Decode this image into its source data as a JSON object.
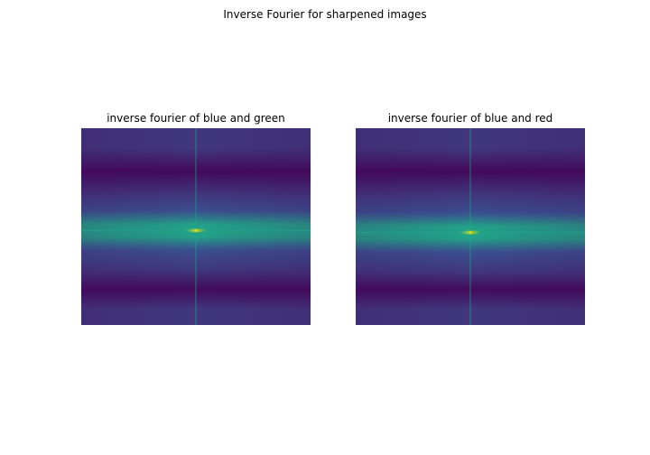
{
  "figure": {
    "title": "Inverse Fourier for sharpened images"
  },
  "chart_data": [
    {
      "type": "heatmap",
      "title": "inverse fourier of blue and green",
      "xlabel": "",
      "ylabel": "",
      "axes_visible": false,
      "colormap": "viridis",
      "colors": {
        "background": "#40377c",
        "dark_band": "#430a5c",
        "mid_band": "#3a4f8e",
        "bright_band": "#22a188",
        "peak": "#d8e219"
      },
      "features": {
        "bright_band_row_fraction": 0.52,
        "peak_col_fraction": 0.5,
        "peak_row_fraction": 0.52,
        "dark_bands_row_fractions": [
          0.22,
          0.87
        ]
      }
    },
    {
      "type": "heatmap",
      "title": "inverse fourier of blue and red",
      "xlabel": "",
      "ylabel": "",
      "axes_visible": false,
      "colormap": "viridis",
      "colors": {
        "background": "#40377c",
        "dark_band": "#430a5c",
        "mid_band": "#3a4f8e",
        "bright_band": "#22a188",
        "peak": "#d8e219"
      },
      "features": {
        "bright_band_row_fraction": 0.53,
        "peak_col_fraction": 0.5,
        "peak_row_fraction": 0.53,
        "dark_bands_row_fractions": [
          0.22,
          0.87
        ]
      }
    }
  ]
}
